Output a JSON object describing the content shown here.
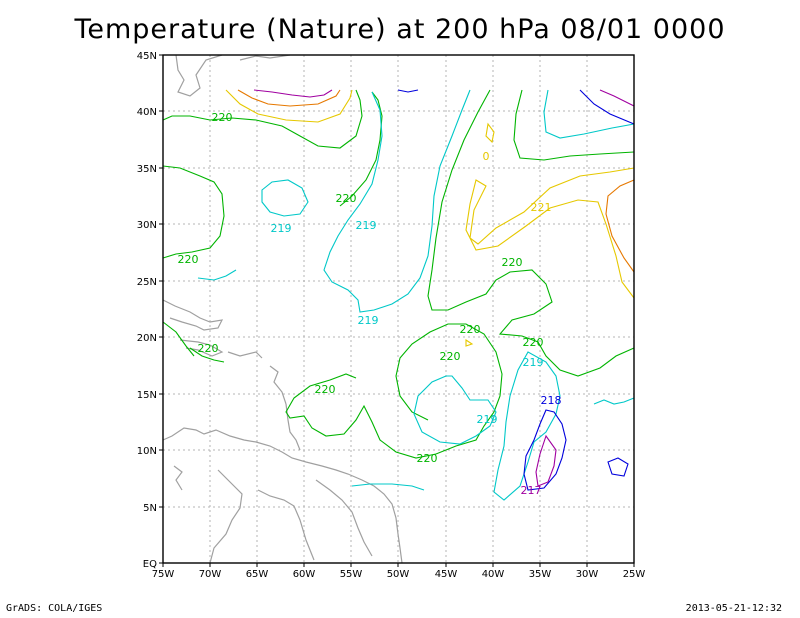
{
  "title": "Temperature (Nature) at 200 hPa 08/01 0000",
  "footer": {
    "credit": "GrADS: COLA/IGES",
    "timestamp": "2013-05-21-12:32"
  },
  "map": {
    "variable": "Temperature",
    "level": "200 hPa",
    "lon_ticks": [
      "75W",
      "70W",
      "65W",
      "60W",
      "55W",
      "50W",
      "45W",
      "40W",
      "35W",
      "30W",
      "25W"
    ],
    "lat_ticks": [
      "EQ",
      "5N",
      "10N",
      "15N",
      "20N",
      "25N",
      "30N",
      "35N",
      "40N",
      "45N"
    ],
    "lon_range": [
      -75,
      -25
    ],
    "lat_range": [
      0,
      45
    ],
    "grid": true,
    "colors": {
      "coast": "#a0a0a0",
      "grid": "#b4b4b4",
      "frame": "#000000"
    },
    "contour_labels": [
      {
        "text": "220",
        "color": "#00b400"
      },
      {
        "text": "219",
        "color": "#00c8c8"
      },
      {
        "text": "220",
        "color": "#00b400"
      },
      {
        "text": "219",
        "color": "#00c8c8"
      },
      {
        "text": "220",
        "color": "#00b400"
      },
      {
        "text": "219",
        "color": "#00c8c8"
      },
      {
        "text": "221",
        "color": "#e6c800"
      },
      {
        "text": "220",
        "color": "#00b400"
      },
      {
        "text": "220",
        "color": "#00b400"
      },
      {
        "text": "220",
        "color": "#00b400"
      },
      {
        "text": "220",
        "color": "#00b400"
      },
      {
        "text": "220",
        "color": "#00b400"
      },
      {
        "text": "219",
        "color": "#00c8c8"
      },
      {
        "text": "220",
        "color": "#00b400"
      },
      {
        "text": "218",
        "color": "#0000dc"
      },
      {
        "text": "219",
        "color": "#00c8c8"
      },
      {
        "text": "220",
        "color": "#00b400"
      },
      {
        "text": "217",
        "color": "#a000a0"
      },
      {
        "text": "0",
        "color": "#e6c800"
      }
    ]
  }
}
